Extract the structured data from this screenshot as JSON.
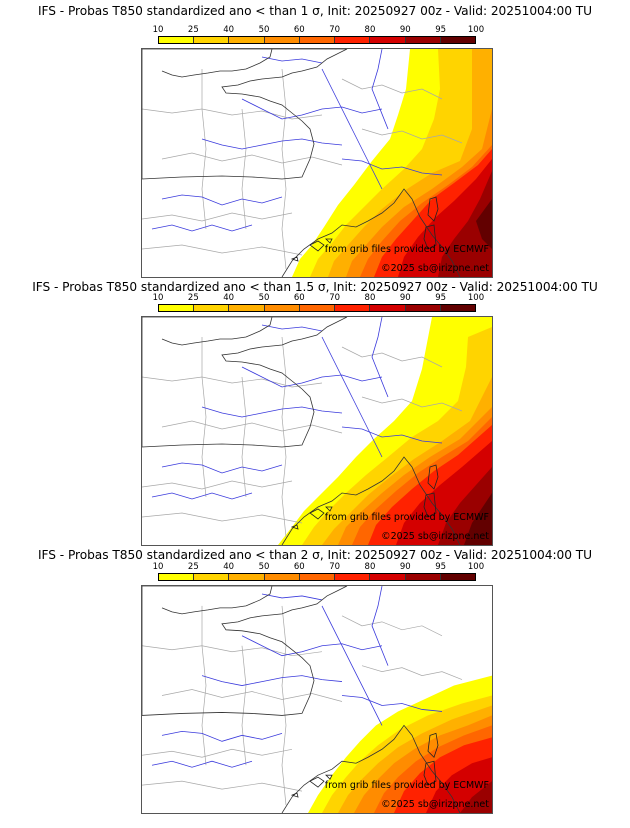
{
  "panels": [
    {
      "title": "IFS - Probas T850  standardized ano < than 1 σ, Init: 20250927 00z - Valid: 20251004:00 TU",
      "threshold_sigma": 1
    },
    {
      "title": "IFS - Probas T850  standardized ano < than 1.5 σ, Init: 20250927 00z - Valid: 20251004:00 TU",
      "threshold_sigma": 1.5
    },
    {
      "title": "IFS - Probas T850  standardized ano < than 2 σ, Init: 20250927 00z - Valid: 20251004:00 TU",
      "threshold_sigma": 2
    }
  ],
  "colorbar": {
    "ticks": [
      "10",
      "25",
      "40",
      "50",
      "60",
      "70",
      "80",
      "90",
      "95",
      "100"
    ],
    "colors": [
      "#ffff00",
      "#ffd400",
      "#ffb000",
      "#ff8c00",
      "#ff6600",
      "#ff2200",
      "#d40000",
      "#9a0000",
      "#620000"
    ]
  },
  "credits": {
    "source": "from grib files provided by ECMWF",
    "copyright": "©2025 sb@irizpne.net"
  }
}
